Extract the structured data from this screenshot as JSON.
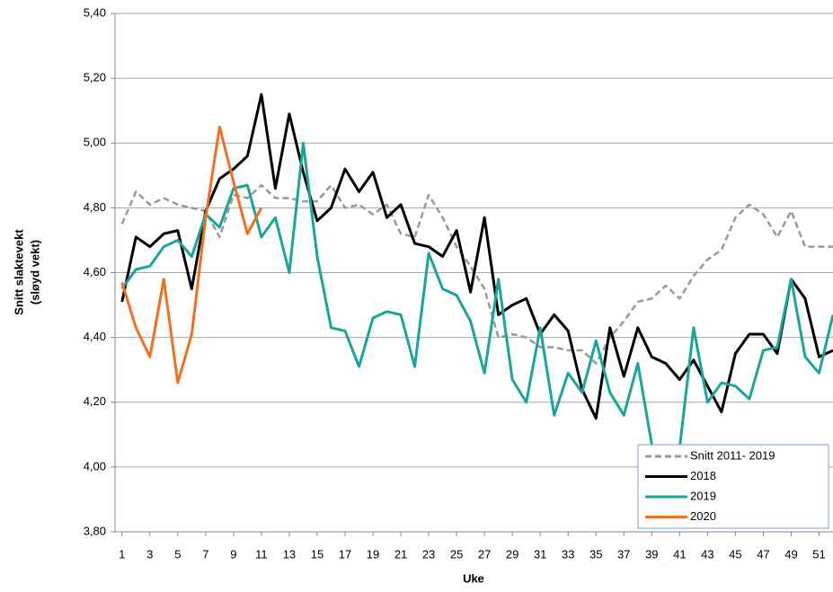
{
  "chart_data": {
    "type": "line",
    "xlabel": "Uke",
    "ylabel": [
      "Snitt slaktevekt",
      "(sløyd vekt)"
    ],
    "x": [
      1,
      2,
      3,
      4,
      5,
      6,
      7,
      8,
      9,
      10,
      11,
      12,
      13,
      14,
      15,
      16,
      17,
      18,
      19,
      20,
      21,
      22,
      23,
      24,
      25,
      26,
      27,
      28,
      29,
      30,
      31,
      32,
      33,
      34,
      35,
      36,
      37,
      38,
      39,
      40,
      41,
      42,
      43,
      44,
      45,
      46,
      47,
      48,
      49,
      50,
      51,
      52
    ],
    "xlim": [
      0.5,
      52
    ],
    "xticks": [
      1,
      3,
      5,
      7,
      9,
      11,
      13,
      15,
      17,
      19,
      21,
      23,
      25,
      27,
      29,
      31,
      33,
      35,
      37,
      39,
      41,
      43,
      45,
      47,
      49,
      51
    ],
    "ylim": [
      3.8,
      5.4
    ],
    "yticks": [
      {
        "value": 3.8,
        "label": "3,80"
      },
      {
        "value": 4.0,
        "label": "4,00"
      },
      {
        "value": 4.2,
        "label": "4,20"
      },
      {
        "value": 4.4,
        "label": "4,40"
      },
      {
        "value": 4.6,
        "label": "4,60"
      },
      {
        "value": 4.8,
        "label": "4,80"
      },
      {
        "value": 5.0,
        "label": "5,00"
      },
      {
        "value": 5.2,
        "label": "5,20"
      },
      {
        "value": 5.4,
        "label": "5,40"
      }
    ],
    "grid": true,
    "legend": "bottom-right",
    "series": [
      {
        "name": "Snitt 2011- 2019",
        "color": "#999999",
        "style": "dashed",
        "values": [
          4.75,
          4.85,
          4.81,
          4.83,
          4.81,
          4.8,
          4.79,
          4.71,
          4.84,
          4.83,
          4.87,
          4.83,
          4.83,
          4.82,
          4.82,
          4.87,
          4.8,
          4.81,
          4.78,
          4.81,
          4.72,
          4.71,
          4.84,
          4.77,
          4.68,
          4.62,
          4.55,
          4.4,
          4.41,
          4.4,
          4.37,
          4.37,
          4.36,
          4.36,
          4.32,
          4.4,
          4.45,
          4.51,
          4.52,
          4.56,
          4.52,
          4.59,
          4.64,
          4.67,
          4.77,
          4.81,
          4.78,
          4.71,
          4.79,
          4.68,
          4.68,
          4.68
        ]
      },
      {
        "name": "2018",
        "color": "#000000",
        "style": "solid",
        "values": [
          4.51,
          4.71,
          4.68,
          4.72,
          4.73,
          4.55,
          4.79,
          4.89,
          4.92,
          4.96,
          5.15,
          4.86,
          5.09,
          4.91,
          4.76,
          4.8,
          4.92,
          4.85,
          4.91,
          4.77,
          4.81,
          4.69,
          4.68,
          4.65,
          4.73,
          4.54,
          4.77,
          4.47,
          4.5,
          4.52,
          4.41,
          4.47,
          4.42,
          4.24,
          4.15,
          4.43,
          4.28,
          4.43,
          4.34,
          4.32,
          4.27,
          4.33,
          4.25,
          4.17,
          4.35,
          4.41,
          4.41,
          4.35,
          4.58,
          4.52,
          4.34,
          4.36
        ]
      },
      {
        "name": "2019",
        "color": "#1aa59a",
        "style": "solid",
        "values": [
          4.55,
          4.61,
          4.62,
          4.68,
          4.7,
          4.65,
          4.78,
          4.74,
          4.86,
          4.87,
          4.71,
          4.77,
          4.6,
          5.0,
          4.65,
          4.43,
          4.42,
          4.31,
          4.46,
          4.48,
          4.47,
          4.31,
          4.66,
          4.55,
          4.53,
          4.45,
          4.29,
          4.58,
          4.27,
          4.2,
          4.43,
          4.16,
          4.29,
          4.23,
          4.39,
          4.23,
          4.16,
          4.32,
          4.07,
          3.98,
          4.06,
          4.43,
          4.2,
          4.26,
          4.25,
          4.21,
          4.36,
          4.37,
          4.58,
          4.34,
          4.29,
          4.47
        ]
      },
      {
        "name": "2020",
        "color": "#f26f21",
        "style": "solid",
        "values": [
          4.57,
          4.43,
          4.34,
          4.58,
          4.26,
          4.41,
          4.77,
          5.05,
          4.88,
          4.72,
          4.8,
          null,
          null,
          null,
          null,
          null,
          null,
          null,
          null,
          null,
          null,
          null,
          null,
          null,
          null,
          null,
          null,
          null,
          null,
          null,
          null,
          null,
          null,
          null,
          null,
          null,
          null,
          null,
          null,
          null,
          null,
          null,
          null,
          null,
          null,
          null,
          null,
          null,
          null,
          null,
          null,
          null
        ]
      }
    ]
  }
}
